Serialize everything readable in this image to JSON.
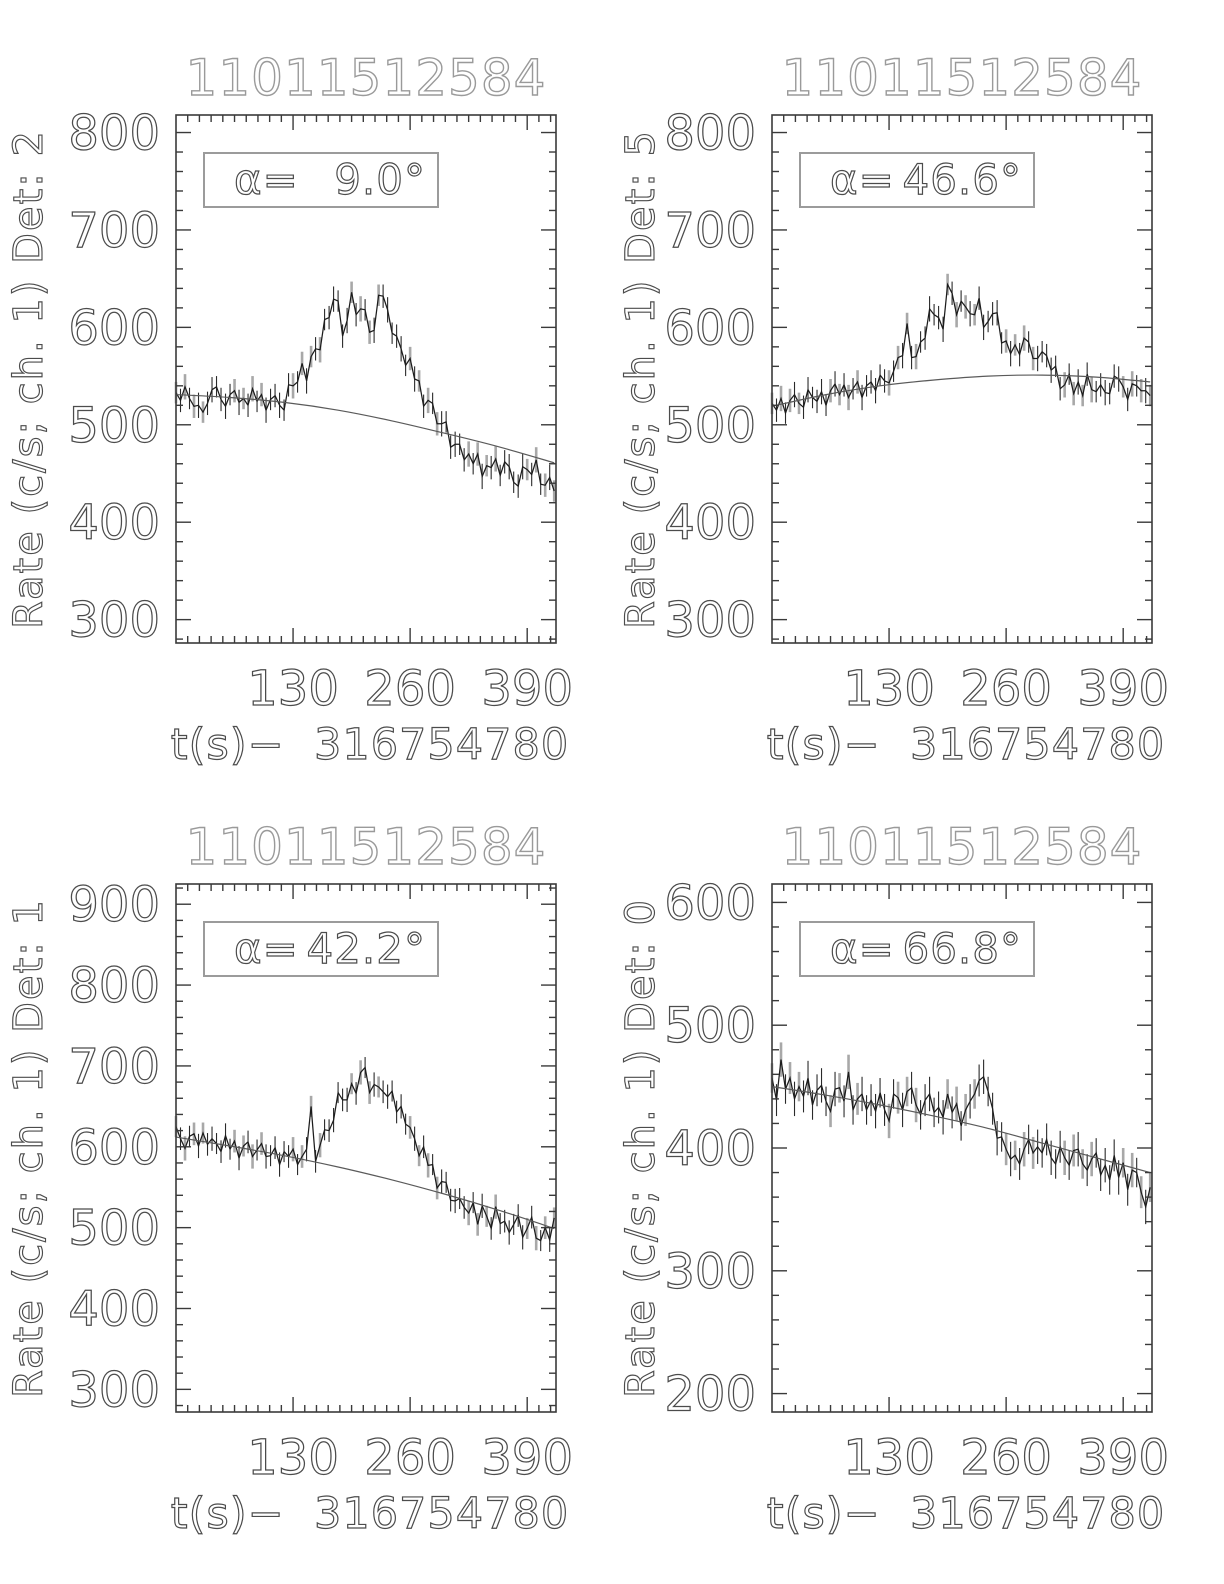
{
  "colors": {
    "axis": "#3a3a3a",
    "data_line": "#1c1c1c",
    "model_line": "#5a5a5a",
    "title_text": "#9a9a9a",
    "label_text": "#4c4c4c",
    "annotation_border": "#9b9b9b",
    "error_bar_dark": "#2a2a2a",
    "error_bar_gray": "#a8a8a8",
    "background": "#ffffff"
  },
  "chart_data": [
    {
      "type": "line",
      "title": "11011512584",
      "ylabel": "Rate (c/s; ch. 1) Det: 2",
      "xlabel": "t(s)−  316754780",
      "annotation": {
        "label": "α=",
        "value": "9.0°"
      },
      "xlim": [
        0,
        422
      ],
      "ylim": [
        276,
        818
      ],
      "xticks": [
        130,
        260,
        390
      ],
      "yticks": [
        300,
        400,
        500,
        600,
        700,
        800
      ],
      "x_minor_step": 13,
      "y_minor_step": 20,
      "grid": false,
      "legend": false,
      "x0": 0,
      "dx": 5,
      "err_half": 11,
      "y": [
        533,
        525,
        539,
        527,
        519,
        520,
        513,
        522,
        536,
        539,
        526,
        519,
        531,
        535,
        523,
        527,
        520,
        537,
        524,
        531,
        515,
        526,
        530,
        520,
        515,
        541,
        540,
        544,
        563,
        545,
        570,
        578,
        577,
        608,
        610,
        629,
        627,
        591,
        607,
        636,
        613,
        619,
        618,
        595,
        597,
        633,
        632,
        618,
        594,
        591,
        578,
        561,
        568,
        547,
        545,
        519,
        525,
        522,
        501,
        501,
        503,
        477,
        480,
        480,
        464,
        470,
        460,
        470,
        447,
        458,
        456,
        465,
        448,
        462,
        457,
        441,
        437,
        457,
        454,
        449,
        464,
        439,
        438,
        446,
        432
      ],
      "background_curve": [
        [
          0,
          531
        ],
        [
          60,
          528
        ],
        [
          120,
          523
        ],
        [
          180,
          515
        ],
        [
          240,
          504
        ],
        [
          300,
          491
        ],
        [
          360,
          477
        ],
        [
          420,
          461
        ]
      ]
    },
    {
      "type": "line",
      "title": "11011512584",
      "ylabel": "Rate (c/s; ch. 1) Det: 5",
      "xlabel": "t(s)−  316754780",
      "annotation": {
        "label": "α=",
        "value": "46.6°"
      },
      "xlim": [
        0,
        422
      ],
      "ylim": [
        276,
        818
      ],
      "xticks": [
        130,
        260,
        390
      ],
      "yticks": [
        300,
        400,
        500,
        600,
        700,
        800
      ],
      "x_minor_step": 13,
      "y_minor_step": 20,
      "grid": false,
      "legend": false,
      "x0": 0,
      "dx": 5,
      "err_half": 11,
      "y": [
        522,
        515,
        527,
        512,
        525,
        531,
        522,
        518,
        536,
        528,
        524,
        534,
        520,
        535,
        542,
        531,
        541,
        528,
        537,
        544,
        528,
        540,
        544,
        535,
        551,
        545,
        543,
        555,
        569,
        571,
        604,
        569,
        570,
        585,
        589,
        619,
        613,
        610,
        598,
        644,
        635,
        613,
        627,
        621,
        614,
        613,
        630,
        600,
        606,
        614,
        615,
        584,
        586,
        573,
        582,
        572,
        589,
        585,
        568,
        568,
        575,
        571,
        556,
        560,
        537,
        541,
        552,
        532,
        544,
        530,
        552,
        536,
        534,
        541,
        533,
        532,
        550,
        547,
        539,
        526,
        542,
        540,
        535,
        535,
        530
      ],
      "background_curve": [
        [
          0,
          519
        ],
        [
          60,
          531
        ],
        [
          120,
          540
        ],
        [
          180,
          546
        ],
        [
          240,
          550
        ],
        [
          300,
          551
        ],
        [
          360,
          549
        ],
        [
          420,
          544
        ]
      ]
    },
    {
      "type": "line",
      "title": "11011512584",
      "ylabel": "Rate (c/s; ch. 1) Det: 1",
      "xlabel": "t(s)−  316754780",
      "annotation": {
        "label": "α=",
        "value": "42.2°"
      },
      "xlim": [
        0,
        422
      ],
      "ylim": [
        272,
        925
      ],
      "xticks": [
        130,
        260,
        390
      ],
      "yticks": [
        300,
        400,
        500,
        600,
        700,
        800,
        900
      ],
      "x_minor_step": 13,
      "y_minor_step": 20,
      "grid": false,
      "legend": false,
      "x0": 0,
      "dx": 5,
      "err_half": 13,
      "y": [
        625,
        610,
        598,
        613,
        616,
        601,
        617,
        603,
        610,
        604,
        594,
        614,
        597,
        607,
        586,
        601,
        606,
        588,
        596,
        604,
        588,
        589,
        599,
        578,
        594,
        588,
        597,
        578,
        588,
        597,
        650,
        582,
        602,
        621,
        620,
        633,
        667,
        658,
        658,
        678,
        666,
        692,
        698,
        667,
        677,
        674,
        668,
        662,
        669,
        643,
        650,
        628,
        624,
        610,
        589,
        600,
        577,
        578,
        549,
        557,
        556,
        534,
        533,
        536,
        525,
        518,
        531,
        504,
        527,
        514,
        499,
        526,
        505,
        508,
        494,
        504,
        515,
        488,
        499,
        513,
        487,
        484,
        500,
        485,
        512
      ],
      "background_curve": [
        [
          0,
          612
        ],
        [
          60,
          601
        ],
        [
          120,
          589
        ],
        [
          180,
          575
        ],
        [
          240,
          559
        ],
        [
          300,
          541
        ],
        [
          360,
          521
        ],
        [
          420,
          499
        ]
      ]
    },
    {
      "type": "line",
      "title": "11011512584",
      "ylabel": "Rate (c/s; ch. 1) Det: 0",
      "xlabel": "t(s)−  316754780",
      "annotation": {
        "label": "α=",
        "value": "66.8°"
      },
      "xlim": [
        0,
        422
      ],
      "ylim": [
        185,
        615
      ],
      "xticks": [
        130,
        260,
        390
      ],
      "yticks": [
        200,
        300,
        400,
        500,
        600
      ],
      "x_minor_step": 13,
      "y_minor_step": 20,
      "grid": false,
      "legend": false,
      "x0": 0,
      "dx": 5,
      "err_half": 12,
      "y": [
        457,
        439,
        472,
        448,
        457,
        440,
        450,
        442,
        457,
        435,
        447,
        451,
        438,
        430,
        448,
        449,
        438,
        462,
        431,
        440,
        444,
        431,
        439,
        430,
        445,
        431,
        422,
        444,
        441,
        431,
        446,
        449,
        435,
        427,
        439,
        444,
        429,
        433,
        425,
        444,
        429,
        436,
        418,
        431,
        438,
        444,
        455,
        458,
        446,
        432,
        408,
        409,
        399,
        391,
        394,
        387,
        399,
        407,
        396,
        401,
        396,
        407,
        392,
        387,
        401,
        392,
        386,
        398,
        399,
        387,
        382,
        391,
        396,
        378,
        386,
        374,
        394,
        376,
        388,
        366,
        382,
        380,
        364,
        352,
        368
      ],
      "background_curve": [
        [
          0,
          450
        ],
        [
          60,
          443
        ],
        [
          120,
          435
        ],
        [
          180,
          426
        ],
        [
          240,
          416
        ],
        [
          300,
          404
        ],
        [
          360,
          392
        ],
        [
          420,
          380
        ]
      ]
    }
  ]
}
